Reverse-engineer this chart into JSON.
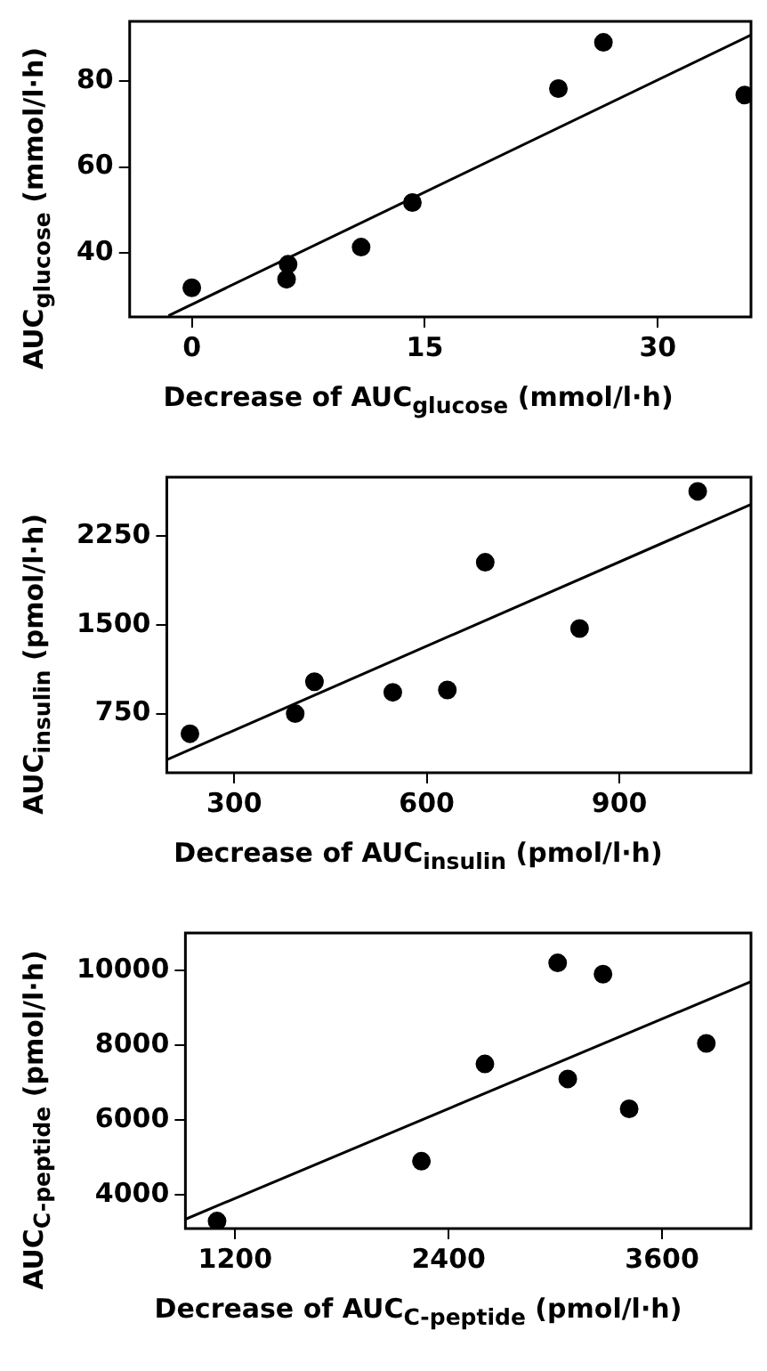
{
  "chart_data": [
    {
      "type": "scatter",
      "xlabel": "Decrease of AUC$_{glucose}$ (mmol/l·h)",
      "ylabel": "AUC$_{glucose}$ (mmol/l·h)",
      "xlim": [
        -4,
        36
      ],
      "ylim": [
        25,
        94
      ],
      "xticks": [
        0,
        15,
        30
      ],
      "yticks": [
        40,
        60,
        80
      ],
      "grid": false,
      "marker": "circle",
      "series": [
        {
          "type": "scatter",
          "color": "#000000",
          "x": [
            0,
            6.1,
            6.2,
            10.9,
            14.2,
            23.6,
            26.5,
            35.6
          ],
          "values": [
            31.8,
            33.8,
            37.3,
            41.3,
            51.7,
            78.3,
            89.1,
            76.8
          ]
        },
        {
          "type": "line",
          "color": "#000000",
          "marker": "none",
          "x": [
            -1.5,
            36
          ],
          "values": [
            25.3,
            90.8
          ]
        }
      ]
    },
    {
      "type": "scatter",
      "xlabel": "Decrease of AUC$_{insulin}$ (pmol/l·h)",
      "ylabel": "AUC$_{insulin}$ (pmol/l·h)",
      "xlim": [
        195,
        1105
      ],
      "ylim": [
        250,
        2750
      ],
      "xticks": [
        300,
        600,
        900
      ],
      "yticks": [
        750,
        1500,
        2250
      ],
      "grid": false,
      "marker": "circle",
      "series": [
        {
          "type": "scatter",
          "color": "#000000",
          "x": [
            231,
            395,
            425,
            547,
            632,
            691,
            838,
            1022
          ],
          "values": [
            580,
            750,
            1020,
            930,
            950,
            2030,
            1470,
            2630
          ]
        },
        {
          "type": "line",
          "color": "#000000",
          "marker": "none",
          "x": [
            195,
            1105
          ],
          "values": [
            360,
            2520
          ]
        }
      ]
    },
    {
      "type": "scatter",
      "xlabel": "Decrease of AUC$_{C-peptide}$ (pmol/l·h)",
      "ylabel": "AUC$_{C-peptide}$ (pmol/l·h)",
      "xlim": [
        920,
        4100
      ],
      "ylim": [
        3100,
        11000
      ],
      "xticks": [
        1200,
        2400,
        3600
      ],
      "yticks": [
        4000,
        6000,
        8000,
        10000
      ],
      "grid": false,
      "marker": "circle",
      "series": [
        {
          "type": "scatter",
          "color": "#000000",
          "x": [
            1098,
            2247,
            2604,
            3013,
            3070,
            3268,
            3415,
            3849
          ],
          "values": [
            3300,
            4900,
            7500,
            10200,
            7100,
            9900,
            6300,
            8050
          ]
        },
        {
          "type": "line",
          "color": "#000000",
          "marker": "none",
          "x": [
            920,
            4100
          ],
          "values": [
            3350,
            9700
          ]
        }
      ]
    }
  ]
}
